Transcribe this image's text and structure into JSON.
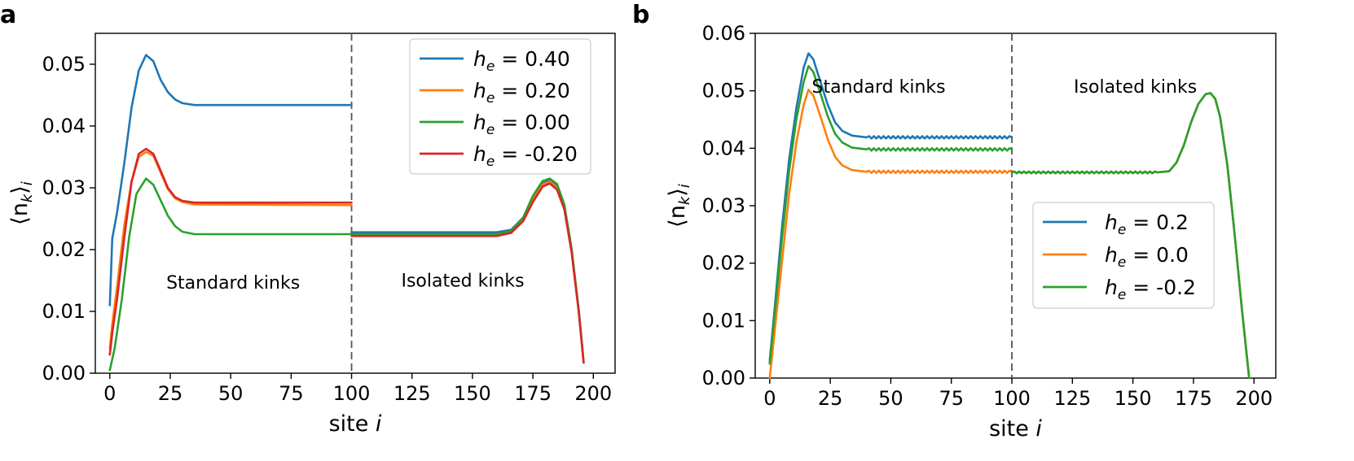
{
  "chart_data": [
    {
      "panel": "a",
      "type": "line",
      "xlabel": "site",
      "xlabel_var": "i",
      "ylabel_base": "⟨n",
      "ylabel_sub1": "k",
      "ylabel_close": "⟩",
      "ylabel_sub2": "i",
      "xlim": [
        -6,
        209
      ],
      "ylim": [
        0.0,
        0.055
      ],
      "xticks": [
        0,
        25,
        50,
        75,
        100,
        125,
        150,
        175,
        200
      ],
      "yticks": [
        0.0,
        0.01,
        0.02,
        0.03,
        0.04,
        0.05
      ],
      "ytick_decimals": 2,
      "grid": false,
      "legend_position": "top-right",
      "vline_x": 100,
      "annotations": [
        {
          "text": "Standard kinks",
          "x": 51,
          "y": 0.0137
        },
        {
          "text": "Isolated kinks",
          "x": 146,
          "y": 0.014
        }
      ],
      "series": [
        {
          "var": "h",
          "sub": "e",
          "label_value": "= 0.40",
          "color": "#1f77b4",
          "points": [
            [
              0,
              0.011
            ],
            [
              1,
              0.0218
            ],
            [
              3,
              0.026
            ],
            [
              6,
              0.034
            ],
            [
              9,
              0.043
            ],
            [
              12,
              0.049
            ],
            [
              15,
              0.0515
            ],
            [
              18,
              0.0505
            ],
            [
              21,
              0.0475
            ],
            [
              24,
              0.0455
            ],
            [
              27,
              0.0443
            ],
            [
              30,
              0.0437
            ],
            [
              35,
              0.0434
            ],
            [
              100,
              0.0434
            ]
          ]
        },
        {
          "var": "h",
          "sub": "e",
          "label_value": "= 0.20",
          "color": "#ff7f0e",
          "points": [
            [
              0,
              0.004
            ],
            [
              1,
              0.008
            ],
            [
              3,
              0.014
            ],
            [
              6,
              0.024
            ],
            [
              9,
              0.031
            ],
            [
              12,
              0.035
            ],
            [
              15,
              0.0358
            ],
            [
              18,
              0.0352
            ],
            [
              21,
              0.0325
            ],
            [
              24,
              0.0298
            ],
            [
              27,
              0.0283
            ],
            [
              30,
              0.0277
            ],
            [
              35,
              0.0273
            ],
            [
              100,
              0.0272
            ]
          ]
        },
        {
          "var": "h",
          "sub": "e",
          "label_value": "= 0.00",
          "color": "#2ca02c",
          "points": [
            [
              0,
              0.0005
            ],
            [
              2,
              0.004
            ],
            [
              5,
              0.012
            ],
            [
              8,
              0.022
            ],
            [
              11,
              0.029
            ],
            [
              15,
              0.0315
            ],
            [
              18,
              0.0305
            ],
            [
              21,
              0.028
            ],
            [
              24,
              0.0255
            ],
            [
              27,
              0.0238
            ],
            [
              30,
              0.0229
            ],
            [
              35,
              0.0225
            ],
            [
              100,
              0.0225
            ]
          ]
        },
        {
          "var": "h",
          "sub": "e",
          "label_value": "= -0.20",
          "color": "#d62728",
          "points": [
            [
              0,
              0.003
            ],
            [
              1,
              0.0065
            ],
            [
              3,
              0.012
            ],
            [
              6,
              0.022
            ],
            [
              9,
              0.031
            ],
            [
              12,
              0.0355
            ],
            [
              15,
              0.0363
            ],
            [
              18,
              0.0355
            ],
            [
              21,
              0.0328
            ],
            [
              24,
              0.03
            ],
            [
              27,
              0.0285
            ],
            [
              30,
              0.0279
            ],
            [
              35,
              0.0276
            ],
            [
              100,
              0.0276
            ]
          ]
        }
      ],
      "isolated_series": [
        {
          "color": "#1f77b4",
          "points": [
            [
              100,
              0.0228
            ],
            [
              160,
              0.0228
            ],
            [
              166,
              0.0232
            ],
            [
              171,
              0.0252
            ],
            [
              175,
              0.0283
            ],
            [
              179,
              0.0307
            ],
            [
              182,
              0.0312
            ],
            [
              185,
              0.0303
            ],
            [
              188,
              0.027
            ],
            [
              191,
              0.02
            ],
            [
              194,
              0.01
            ],
            [
              196,
              0.0018
            ]
          ]
        },
        {
          "color": "#ff7f0e",
          "points": [
            [
              100,
              0.0223
            ],
            [
              160,
              0.0223
            ],
            [
              166,
              0.0228
            ],
            [
              171,
              0.0248
            ],
            [
              175,
              0.028
            ],
            [
              179,
              0.0305
            ],
            [
              182,
              0.031
            ],
            [
              185,
              0.03
            ],
            [
              188,
              0.0268
            ],
            [
              191,
              0.0198
            ],
            [
              194,
              0.0099
            ],
            [
              196,
              0.0017
            ]
          ]
        },
        {
          "color": "#2ca02c",
          "points": [
            [
              100,
              0.0225
            ],
            [
              160,
              0.0225
            ],
            [
              166,
              0.023
            ],
            [
              171,
              0.0252
            ],
            [
              175,
              0.0287
            ],
            [
              179,
              0.0311
            ],
            [
              182,
              0.0315
            ],
            [
              185,
              0.0306
            ],
            [
              188,
              0.0273
            ],
            [
              191,
              0.0202
            ],
            [
              194,
              0.0101
            ],
            [
              196,
              0.0018
            ]
          ]
        },
        {
          "color": "#d62728",
          "points": [
            [
              100,
              0.0222
            ],
            [
              160,
              0.0222
            ],
            [
              166,
              0.0227
            ],
            [
              171,
              0.0246
            ],
            [
              175,
              0.0277
            ],
            [
              179,
              0.0302
            ],
            [
              182,
              0.0307
            ],
            [
              185,
              0.0297
            ],
            [
              188,
              0.0265
            ],
            [
              191,
              0.0196
            ],
            [
              194,
              0.0098
            ],
            [
              196,
              0.0017
            ]
          ]
        }
      ]
    },
    {
      "panel": "b",
      "type": "line",
      "xlabel": "site",
      "xlabel_var": "i",
      "ylabel_base": "⟨n",
      "ylabel_sub1": "k",
      "ylabel_close": "⟩",
      "ylabel_sub2": "i",
      "xlim": [
        -6,
        209
      ],
      "ylim": [
        0.0,
        0.06
      ],
      "xticks": [
        0,
        25,
        50,
        75,
        100,
        125,
        150,
        175,
        200
      ],
      "yticks": [
        0.0,
        0.01,
        0.02,
        0.03,
        0.04,
        0.05,
        0.06
      ],
      "ytick_decimals": 2,
      "grid": false,
      "legend_position": "center-right",
      "vline_x": 100,
      "annotations": [
        {
          "text": "Standard kinks",
          "x": 45,
          "y": 0.0497
        },
        {
          "text": "Isolated kinks",
          "x": 151,
          "y": 0.0497
        }
      ],
      "series": [
        {
          "var": "h",
          "sub": "e",
          "label_value": "= 0.2",
          "color": "#1f77b4",
          "points": [
            [
              0,
              0.003
            ],
            [
              2,
              0.012
            ],
            [
              5,
              0.026
            ],
            [
              8,
              0.038
            ],
            [
              11,
              0.047
            ],
            [
              14,
              0.054
            ],
            [
              16,
              0.0565
            ],
            [
              18,
              0.0555
            ],
            [
              21,
              0.0515
            ],
            [
              24,
              0.0475
            ],
            [
              27,
              0.0445
            ],
            [
              30,
              0.043
            ],
            [
              34,
              0.0422
            ],
            [
              40,
              0.0419
            ],
            [
              100,
              0.0419
            ]
          ],
          "wiggle": 0.0004
        },
        {
          "var": "h",
          "sub": "e",
          "label_value": "= 0.0",
          "color": "#ff7f0e",
          "points": [
            [
              0,
              0.0
            ],
            [
              2,
              0.008
            ],
            [
              5,
              0.02
            ],
            [
              8,
              0.032
            ],
            [
              11,
              0.041
            ],
            [
              14,
              0.0475
            ],
            [
              16,
              0.0502
            ],
            [
              18,
              0.0492
            ],
            [
              21,
              0.0455
            ],
            [
              24,
              0.0415
            ],
            [
              27,
              0.0385
            ],
            [
              30,
              0.037
            ],
            [
              34,
              0.0362
            ],
            [
              40,
              0.0359
            ],
            [
              100,
              0.0359
            ]
          ],
          "wiggle": 0.0004
        },
        {
          "var": "h",
          "sub": "e",
          "label_value": "= -0.2",
          "color": "#2ca02c",
          "points": [
            [
              0,
              0.0025
            ],
            [
              2,
              0.011
            ],
            [
              5,
              0.024
            ],
            [
              8,
              0.036
            ],
            [
              11,
              0.045
            ],
            [
              14,
              0.0515
            ],
            [
              16,
              0.0543
            ],
            [
              18,
              0.0533
            ],
            [
              21,
              0.0495
            ],
            [
              24,
              0.0455
            ],
            [
              27,
              0.0425
            ],
            [
              30,
              0.041
            ],
            [
              34,
              0.0401
            ],
            [
              40,
              0.0398
            ],
            [
              100,
              0.0398
            ]
          ],
          "wiggle": 0.0004
        }
      ],
      "isolated_series": [
        {
          "color": "#1f77b4",
          "points": [
            [
              100,
              0.0358
            ],
            [
              160,
              0.0358
            ],
            [
              165,
              0.036
            ],
            [
              168,
              0.0375
            ],
            [
              171,
              0.0405
            ],
            [
              174,
              0.0445
            ],
            [
              177,
              0.0477
            ],
            [
              180,
              0.0494
            ],
            [
              182,
              0.0496
            ],
            [
              184,
              0.0486
            ],
            [
              186,
              0.0455
            ],
            [
              189,
              0.037
            ],
            [
              192,
              0.025
            ],
            [
              195,
              0.012
            ],
            [
              198,
              0.0
            ]
          ],
          "wiggle": 0.0003
        },
        {
          "color": "#ff7f0e",
          "points": [
            [
              100,
              0.0358
            ],
            [
              160,
              0.0358
            ],
            [
              165,
              0.036
            ],
            [
              168,
              0.0375
            ],
            [
              171,
              0.0405
            ],
            [
              174,
              0.0445
            ],
            [
              177,
              0.0477
            ],
            [
              180,
              0.0494
            ],
            [
              182,
              0.0496
            ],
            [
              184,
              0.0486
            ],
            [
              186,
              0.0455
            ],
            [
              189,
              0.037
            ],
            [
              192,
              0.025
            ],
            [
              195,
              0.012
            ],
            [
              198,
              0.0
            ]
          ],
          "wiggle": 0.0003
        },
        {
          "color": "#2ca02c",
          "points": [
            [
              100,
              0.0358
            ],
            [
              160,
              0.0358
            ],
            [
              165,
              0.036
            ],
            [
              168,
              0.0375
            ],
            [
              171,
              0.0405
            ],
            [
              174,
              0.0445
            ],
            [
              177,
              0.0477
            ],
            [
              180,
              0.0494
            ],
            [
              182,
              0.0496
            ],
            [
              184,
              0.0486
            ],
            [
              186,
              0.0455
            ],
            [
              189,
              0.037
            ],
            [
              192,
              0.025
            ],
            [
              195,
              0.012
            ],
            [
              198,
              0.0
            ]
          ],
          "wiggle": 0.0003
        }
      ]
    }
  ]
}
